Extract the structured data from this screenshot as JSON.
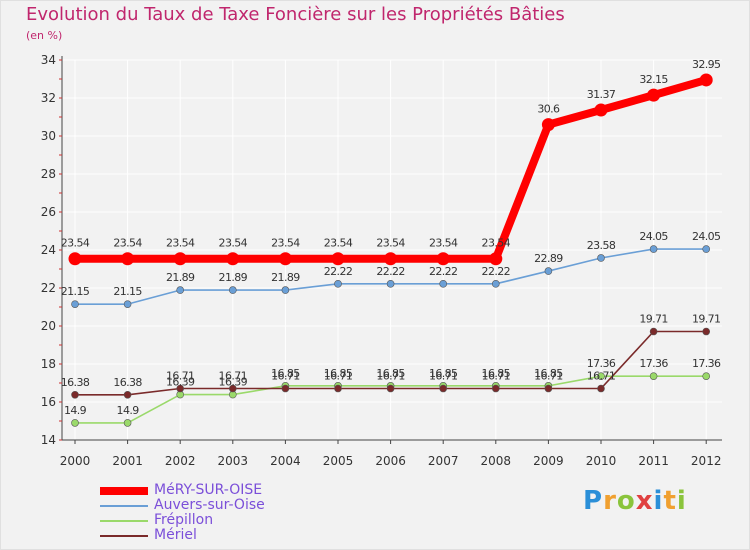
{
  "chart_data": {
    "type": "line",
    "title": "Evolution du Taux de Taxe Foncière sur les Propriétés Bâties",
    "ylabel": "(en %)",
    "xlabel": "",
    "x": [
      "2000",
      "2001",
      "2002",
      "2003",
      "2004",
      "2005",
      "2006",
      "2007",
      "2008",
      "2009",
      "2010",
      "2011",
      "2012"
    ],
    "ylim": [
      14,
      34
    ],
    "yticks": [
      14,
      16,
      18,
      20,
      22,
      24,
      26,
      28,
      30,
      32,
      34
    ],
    "grid": true,
    "legend_position": "bottom-left",
    "series": [
      {
        "name": "MéRY-SUR-OISE",
        "color": "#ff0000",
        "emphasis": true,
        "values": [
          23.54,
          23.54,
          23.54,
          23.54,
          23.54,
          23.54,
          23.54,
          23.54,
          23.54,
          30.6,
          31.37,
          32.15,
          32.95
        ],
        "labels": [
          "23.54",
          "23.54",
          "23.54",
          "23.54",
          "23.54",
          "23.54",
          "23.54",
          "23.54",
          "23.54",
          "30.6",
          "31.37",
          "32.15",
          "32.95"
        ]
      },
      {
        "name": "Auvers-sur-Oise",
        "color": "#6a9fd6",
        "emphasis": false,
        "values": [
          21.15,
          21.15,
          21.89,
          21.89,
          21.89,
          22.22,
          22.22,
          22.22,
          22.22,
          22.89,
          23.58,
          24.05,
          24.05
        ],
        "labels": [
          "21.15",
          "21.15",
          "21.89",
          "21.89",
          "21.89",
          "22.22",
          "22.22",
          "22.22",
          "22.22",
          "22.89",
          "23.58",
          "24.05",
          "24.05"
        ]
      },
      {
        "name": "Frépillon",
        "color": "#9ad96a",
        "emphasis": false,
        "values": [
          14.9,
          14.9,
          16.39,
          16.39,
          16.85,
          16.85,
          16.85,
          16.85,
          16.85,
          16.85,
          17.36,
          17.36,
          17.36
        ],
        "labels": [
          "14.9",
          "14.9",
          "16.39",
          "16.39",
          "16.85",
          "16.85",
          "16.85",
          "16.85",
          "16.85",
          "16.85",
          "17.36",
          "17.36",
          "17.36"
        ]
      },
      {
        "name": "Mériel",
        "color": "#7a2a2a",
        "emphasis": false,
        "values": [
          16.38,
          16.38,
          16.71,
          16.71,
          16.71,
          16.71,
          16.71,
          16.71,
          16.71,
          16.71,
          16.71,
          19.71,
          19.71
        ],
        "labels": [
          "16.38",
          "16.38",
          "16.71",
          "16.71",
          "16.71",
          "16.71",
          "16.71",
          "16.71",
          "16.71",
          "16.71",
          "16.71",
          "19.71",
          "19.71"
        ]
      }
    ]
  },
  "logo": {
    "letters": [
      "P",
      "r",
      "o",
      "x",
      "i",
      "t",
      "i"
    ],
    "colors": [
      "#2b8fd8",
      "#f0a030",
      "#8ac43c",
      "#e04040",
      "#2b8fd8",
      "#f0a030",
      "#8ac43c"
    ]
  }
}
